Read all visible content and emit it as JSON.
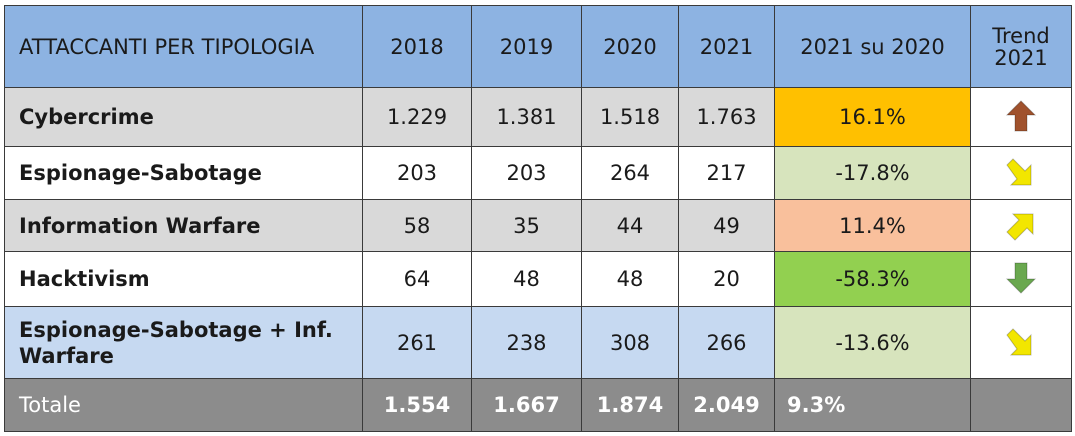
{
  "chart_data": {
    "type": "table",
    "columns": [
      "ATTACCANTI PER TIPOLOGIA",
      "2018",
      "2019",
      "2020",
      "2021",
      "2021 su 2020",
      "Trend 2021"
    ],
    "trend_header": {
      "line1": "Trend",
      "line2": "2021"
    },
    "rows": [
      {
        "label": "Cybercrime",
        "values": [
          "1.229",
          "1.381",
          "1.518",
          "1.763"
        ],
        "change": "16.1%",
        "change_color": "#ffc000",
        "trend": "up",
        "trend_icon": "thick-up-arrow-icon",
        "trend_color": "#a0522d"
      },
      {
        "label": "Espionage-Sabotage",
        "values": [
          "203",
          "203",
          "264",
          "217"
        ],
        "change": "-17.8%",
        "change_color": "#d7e4bd",
        "trend": "down-right",
        "trend_icon": "diagonal-down-arrow-icon",
        "trend_color": "#f2e600"
      },
      {
        "label": "Information Warfare",
        "values": [
          "58",
          "35",
          "44",
          "49"
        ],
        "change": "11.4%",
        "change_color": "#f9c09c",
        "trend": "up-right",
        "trend_icon": "diagonal-up-arrow-icon",
        "trend_color": "#f2e600"
      },
      {
        "label": "Hacktivism",
        "values": [
          "64",
          "48",
          "48",
          "20"
        ],
        "change": "-58.3%",
        "change_color": "#92d050",
        "trend": "down",
        "trend_icon": "thick-down-arrow-icon",
        "trend_color": "#6aa84f"
      },
      {
        "label": "Espionage-Sabotage + Inf. Warfare",
        "label_line1": "Espionage-Sabotage + Inf.",
        "label_line2": "Warfare",
        "values": [
          "261",
          "238",
          "308",
          "266"
        ],
        "change": "-13.6%",
        "change_color": "#d7e4bd",
        "trend": "down-right",
        "trend_icon": "diagonal-down-arrow-icon",
        "trend_color": "#f2e600"
      }
    ],
    "total": {
      "label": "Totale",
      "values": [
        "1.554",
        "1.667",
        "1.874",
        "2.049"
      ],
      "change": "9.3%",
      "trend": ""
    }
  },
  "colors": {
    "header": "#8db3e2",
    "grey_row": "#d9d9d9",
    "blue_row": "#c6d9f1",
    "total_row": "#8c8c8c"
  }
}
